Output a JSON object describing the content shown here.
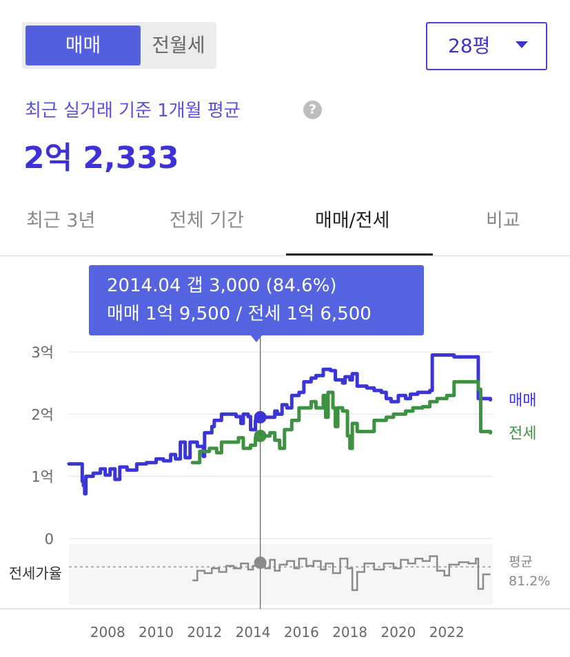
{
  "segment": {
    "sale": "매매",
    "lease": "전월세",
    "active": "sale"
  },
  "size_selector": {
    "value": "28평"
  },
  "summary": {
    "label": "최근 실거래 기준 1개월 평균",
    "help_icon": "question-circle-icon",
    "price": "2억 2,333"
  },
  "tabs": [
    {
      "label": "최근 3년",
      "active": false
    },
    {
      "label": "전체 기간",
      "active": false
    },
    {
      "label": "매매/전세",
      "active": true
    },
    {
      "label": "비교",
      "active": false
    }
  ],
  "tooltip": {
    "line1": "2014.04  갭 3,000 (84.6%)",
    "line2": "매매 1억 9,500 / 전세 1억 6,500",
    "x": 2014.3
  },
  "chart_data": {
    "type": "line",
    "y_ticks": [
      {
        "value": 0,
        "label": "0"
      },
      {
        "value": 1,
        "label": "1억"
      },
      {
        "value": 2,
        "label": "2억"
      },
      {
        "value": 3,
        "label": "3억"
      }
    ],
    "ylim": [
      0,
      3
    ],
    "x_ticks": [
      2008,
      2010,
      2012,
      2014,
      2016,
      2018,
      2020,
      2022
    ],
    "xlim": [
      2006.4,
      2023.9
    ],
    "series": [
      {
        "name": "매매",
        "color": "#3b34d6",
        "points": [
          [
            2006.4,
            1.2
          ],
          [
            2006.9,
            1.2
          ],
          [
            2006.95,
            0.92
          ],
          [
            2007.0,
            0.85
          ],
          [
            2007.05,
            0.72
          ],
          [
            2007.1,
            1.0
          ],
          [
            2007.4,
            1.05
          ],
          [
            2007.7,
            1.12
          ],
          [
            2007.9,
            1.02
          ],
          [
            2008.1,
            1.12
          ],
          [
            2008.3,
            0.95
          ],
          [
            2008.5,
            1.15
          ],
          [
            2008.8,
            1.1
          ],
          [
            2009.2,
            1.2
          ],
          [
            2009.6,
            1.22
          ],
          [
            2010.0,
            1.28
          ],
          [
            2010.3,
            1.25
          ],
          [
            2010.6,
            1.35
          ],
          [
            2010.8,
            1.28
          ],
          [
            2011.0,
            1.55
          ],
          [
            2011.2,
            1.3
          ],
          [
            2011.4,
            1.55
          ],
          [
            2011.7,
            1.48
          ],
          [
            2011.95,
            1.32
          ],
          [
            2012.0,
            1.7
          ],
          [
            2012.3,
            1.8
          ],
          [
            2012.4,
            1.9
          ],
          [
            2012.7,
            2.0
          ],
          [
            2013.3,
            1.96
          ],
          [
            2013.5,
            1.85
          ],
          [
            2013.6,
            2.0
          ],
          [
            2013.8,
            1.96
          ],
          [
            2013.9,
            1.75
          ],
          [
            2014.1,
            1.9
          ],
          [
            2014.3,
            1.95
          ],
          [
            2014.6,
            1.95
          ],
          [
            2014.9,
            2.05
          ],
          [
            2015.0,
            2.0
          ],
          [
            2015.2,
            2.15
          ],
          [
            2015.4,
            2.1
          ],
          [
            2015.6,
            2.3
          ],
          [
            2015.9,
            2.35
          ],
          [
            2016.1,
            2.52
          ],
          [
            2016.4,
            2.58
          ],
          [
            2016.6,
            2.62
          ],
          [
            2016.9,
            2.72
          ],
          [
            2017.2,
            2.7
          ],
          [
            2017.4,
            2.55
          ],
          [
            2017.7,
            2.5
          ],
          [
            2017.8,
            2.6
          ],
          [
            2018.0,
            2.55
          ],
          [
            2018.1,
            2.65
          ],
          [
            2018.3,
            2.45
          ],
          [
            2018.7,
            2.42
          ],
          [
            2019.0,
            2.38
          ],
          [
            2019.3,
            2.35
          ],
          [
            2019.5,
            2.25
          ],
          [
            2019.7,
            2.2
          ],
          [
            2020.0,
            2.3
          ],
          [
            2020.3,
            2.25
          ],
          [
            2020.5,
            2.32
          ],
          [
            2020.8,
            2.35
          ],
          [
            2021.0,
            2.35
          ],
          [
            2021.3,
            2.38
          ],
          [
            2021.4,
            2.95
          ],
          [
            2022.1,
            2.95
          ],
          [
            2022.3,
            2.92
          ],
          [
            2023.2,
            2.92
          ],
          [
            2023.3,
            2.25
          ],
          [
            2023.8,
            2.23
          ]
        ]
      },
      {
        "name": "전세",
        "color": "#3f9142",
        "points": [
          [
            2011.5,
            1.22
          ],
          [
            2011.8,
            1.4
          ],
          [
            2012.2,
            1.45
          ],
          [
            2012.5,
            1.38
          ],
          [
            2012.7,
            1.55
          ],
          [
            2013.0,
            1.55
          ],
          [
            2013.4,
            1.62
          ],
          [
            2013.6,
            1.45
          ],
          [
            2013.9,
            1.5
          ],
          [
            2014.1,
            1.62
          ],
          [
            2014.3,
            1.65
          ],
          [
            2014.7,
            1.7
          ],
          [
            2014.9,
            1.58
          ],
          [
            2015.1,
            1.45
          ],
          [
            2015.3,
            1.75
          ],
          [
            2015.6,
            1.9
          ],
          [
            2015.9,
            2.1
          ],
          [
            2016.2,
            2.1
          ],
          [
            2016.4,
            2.2
          ],
          [
            2016.6,
            2.1
          ],
          [
            2016.9,
            2.3
          ],
          [
            2017.0,
            1.95
          ],
          [
            2017.1,
            2.35
          ],
          [
            2017.3,
            2.1
          ],
          [
            2017.4,
            1.8
          ],
          [
            2017.5,
            2.1
          ],
          [
            2017.7,
            2.05
          ],
          [
            2017.9,
            1.65
          ],
          [
            2018.0,
            1.45
          ],
          [
            2018.1,
            1.85
          ],
          [
            2018.3,
            1.72
          ],
          [
            2018.8,
            1.72
          ],
          [
            2019.0,
            1.9
          ],
          [
            2019.5,
            1.95
          ],
          [
            2019.8,
            2.0
          ],
          [
            2020.3,
            2.05
          ],
          [
            2020.6,
            2.1
          ],
          [
            2021.0,
            2.12
          ],
          [
            2021.3,
            2.2
          ],
          [
            2021.6,
            2.25
          ],
          [
            2022.0,
            2.3
          ],
          [
            2022.3,
            2.52
          ],
          [
            2023.1,
            2.52
          ],
          [
            2023.3,
            2.4
          ],
          [
            2023.4,
            1.72
          ],
          [
            2023.8,
            1.7
          ]
        ]
      }
    ],
    "markers": [
      {
        "series": "매매",
        "x": 2014.3,
        "y": 1.95
      },
      {
        "series": "전세",
        "x": 2014.3,
        "y": 1.65
      }
    ],
    "ratio_panel": {
      "label": "전세가율",
      "avg_label": "평균",
      "avg_value": "81.2%",
      "avg": 81.2,
      "ylim": [
        50,
        100
      ],
      "points": [
        [
          2011.5,
          70
        ],
        [
          2011.7,
          78
        ],
        [
          2012.0,
          76
        ],
        [
          2012.3,
          80
        ],
        [
          2012.6,
          77
        ],
        [
          2012.9,
          82
        ],
        [
          2013.2,
          80
        ],
        [
          2013.5,
          84
        ],
        [
          2013.8,
          79
        ],
        [
          2014.0,
          82
        ],
        [
          2014.3,
          84.6
        ],
        [
          2014.5,
          80
        ],
        [
          2014.7,
          87
        ],
        [
          2014.9,
          78
        ],
        [
          2015.1,
          83
        ],
        [
          2015.4,
          86
        ],
        [
          2015.7,
          80
        ],
        [
          2015.9,
          88
        ],
        [
          2016.2,
          82
        ],
        [
          2016.5,
          86
        ],
        [
          2016.8,
          79
        ],
        [
          2017.0,
          84
        ],
        [
          2017.3,
          76
        ],
        [
          2017.6,
          88
        ],
        [
          2017.9,
          80
        ],
        [
          2018.1,
          62
        ],
        [
          2018.3,
          77
        ],
        [
          2018.6,
          84
        ],
        [
          2019.0,
          79
        ],
        [
          2019.4,
          84
        ],
        [
          2019.8,
          80
        ],
        [
          2020.1,
          87
        ],
        [
          2020.4,
          84
        ],
        [
          2020.7,
          88
        ],
        [
          2021.0,
          86
        ],
        [
          2021.3,
          90
        ],
        [
          2021.6,
          78
        ],
        [
          2021.9,
          74
        ],
        [
          2022.1,
          83
        ],
        [
          2022.5,
          85
        ],
        [
          2022.9,
          84
        ],
        [
          2023.2,
          88
        ],
        [
          2023.3,
          63
        ],
        [
          2023.5,
          75
        ],
        [
          2023.8,
          75
        ]
      ],
      "marker": {
        "x": 2014.3,
        "y": 84.6
      }
    }
  }
}
